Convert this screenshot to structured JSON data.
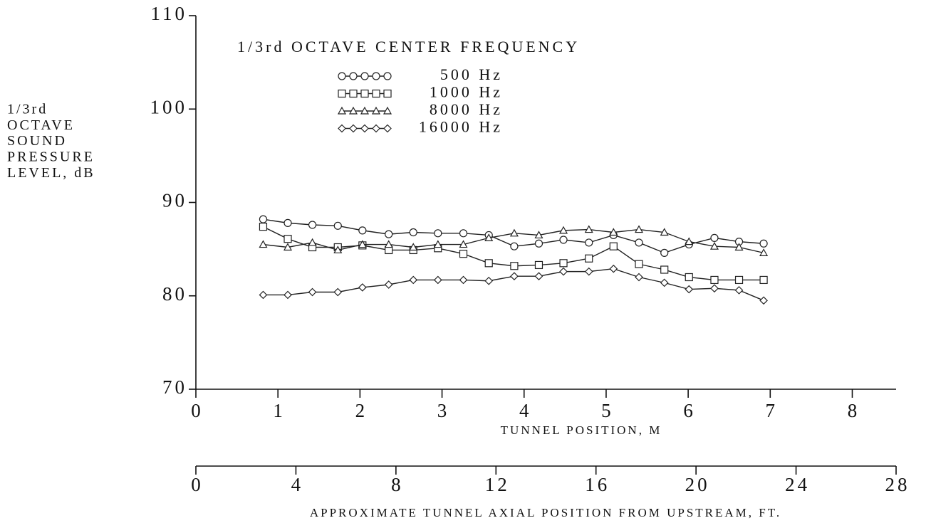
{
  "chart_data": {
    "type": "line",
    "legend_title": "1/3rd OCTAVE CENTER FREQUENCY",
    "ylabel": [
      "1/3rd",
      "OCTAVE",
      "SOUND",
      "PRESSURE",
      "LEVEL, dB"
    ],
    "xlabel": "TUNNEL POSITION, M",
    "x2label": "APPROXIMATE TUNNEL AXIAL POSITION FROM UPSTREAM, FT.",
    "x": [
      0.82,
      1.12,
      1.42,
      1.73,
      2.03,
      2.35,
      2.65,
      2.95,
      3.26,
      3.57,
      3.88,
      4.18,
      4.48,
      4.79,
      5.09,
      5.4,
      5.71,
      6.01,
      6.32,
      6.62,
      6.92
    ],
    "series": [
      {
        "name": "500 Hz",
        "color": "#222222",
        "marker": "circle",
        "values": [
          88.2,
          87.8,
          87.6,
          87.5,
          87.0,
          86.6,
          86.8,
          86.7,
          86.7,
          86.5,
          85.3,
          85.6,
          86.0,
          85.7,
          86.5,
          85.7,
          84.6,
          85.5,
          86.2,
          85.8,
          85.6
        ]
      },
      {
        "name": "1000 Hz",
        "color": "#222222",
        "marker": "square",
        "values": [
          87.4,
          86.1,
          85.2,
          85.2,
          85.4,
          84.9,
          84.9,
          85.1,
          84.5,
          83.5,
          83.2,
          83.3,
          83.5,
          84.0,
          85.3,
          83.4,
          82.8,
          82.0,
          81.7,
          81.7,
          81.7
        ]
      },
      {
        "name": "8000 Hz",
        "color": "#222222",
        "marker": "triangle",
        "values": [
          85.5,
          85.2,
          85.7,
          84.9,
          85.5,
          85.5,
          85.2,
          85.5,
          85.5,
          86.2,
          86.7,
          86.5,
          87.0,
          87.1,
          86.8,
          87.1,
          86.8,
          85.8,
          85.3,
          85.2,
          84.6
        ]
      },
      {
        "name": "16000 Hz",
        "color": "#222222",
        "marker": "diamond",
        "values": [
          80.1,
          80.1,
          80.4,
          80.4,
          80.9,
          81.2,
          81.7,
          81.7,
          81.7,
          81.6,
          82.1,
          82.1,
          82.6,
          82.6,
          82.9,
          82.0,
          81.4,
          80.7,
          80.8,
          80.6,
          79.5
        ]
      }
    ],
    "xlim": [
      0,
      8.534
    ],
    "xticks": [
      0,
      1,
      2,
      3,
      4,
      5,
      6,
      7,
      8
    ],
    "x2lim": [
      0,
      28
    ],
    "x2ticks": [
      0,
      4,
      8,
      12,
      16,
      20,
      24,
      28
    ],
    "ylim": [
      70,
      110
    ],
    "yticks": [
      70,
      80,
      90,
      100,
      110
    ],
    "grid": false
  }
}
